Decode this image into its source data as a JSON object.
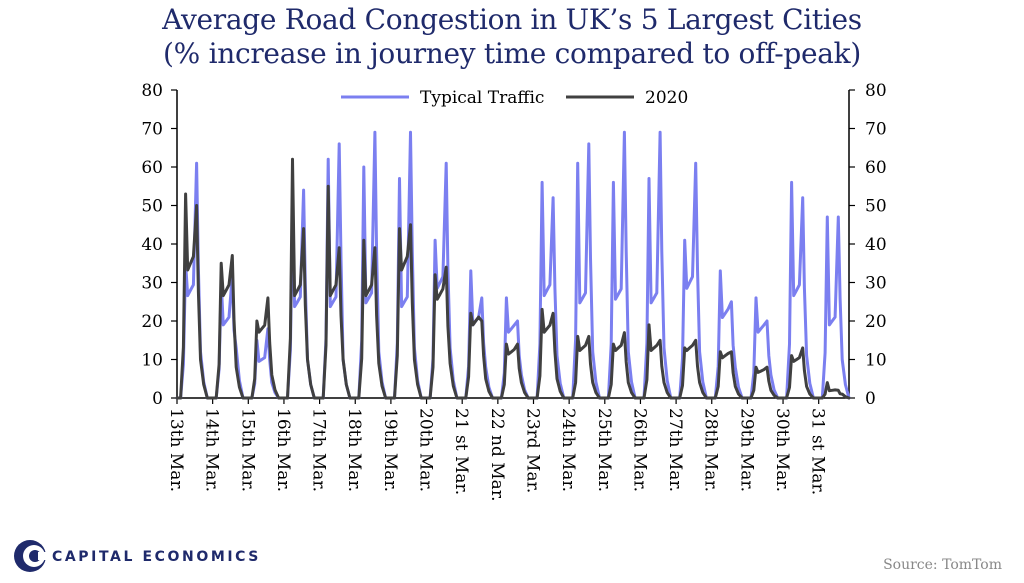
{
  "title_line1": "Average Road Congestion in UK’s 5 Largest Cities",
  "title_line2": "(% increase in journey time compared to off-peak)",
  "source": "Source: TomTom",
  "logo_text": "CAPITAL ECONOMICS",
  "colors": {
    "title": "#1f2a6b",
    "typical": "#7b7ff0",
    "y2020": "#404040",
    "axis": "#000000"
  },
  "chart_data": {
    "type": "line",
    "title": "Average Road Congestion in UK’s 5 Largest Cities (% increase in journey time compared to off-peak)",
    "xlabel": "",
    "ylabel": "",
    "ylim": [
      0,
      80
    ],
    "yticks": [
      0,
      10,
      20,
      30,
      40,
      50,
      60,
      70,
      80
    ],
    "categories": [
      "13th Mar.",
      "14th Mar.",
      "15th Mar.",
      "16th Mar.",
      "17th Mar.",
      "18th Mar.",
      "19th Mar.",
      "20th Mar.",
      "21 st Mar.",
      "22 nd Mar.",
      "23rd Mar.",
      "24th Mar.",
      "25th Mar.",
      "26th Mar.",
      "27th Mar.",
      "28th Mar.",
      "29th Mar.",
      "30th Mar.",
      "31 st Mar."
    ],
    "legend_position": "top-center",
    "grid": false,
    "series": [
      {
        "name": "Typical Traffic",
        "color": "#7b7ff0",
        "days": [
          {
            "am": 35,
            "mid": 28,
            "pm": 61,
            "late": 12
          },
          {
            "am": 30,
            "mid": 20,
            "pm": 32,
            "late": 13
          },
          {
            "am": 15,
            "mid": 10,
            "pm": 18,
            "late": 4
          },
          {
            "am": 50,
            "mid": 25,
            "pm": 54,
            "late": 10
          },
          {
            "am": 62,
            "mid": 25,
            "pm": 66,
            "late": 10
          },
          {
            "am": 60,
            "mid": 26,
            "pm": 69,
            "late": 12
          },
          {
            "am": 57,
            "mid": 25,
            "pm": 69,
            "late": 13
          },
          {
            "am": 41,
            "mid": 30,
            "pm": 61,
            "late": 13
          },
          {
            "am": 33,
            "mid": 20,
            "pm": 26,
            "late": 8
          },
          {
            "am": 26,
            "mid": 18,
            "pm": 20,
            "late": 6
          },
          {
            "am": 56,
            "mid": 28,
            "pm": 52,
            "late": 11
          },
          {
            "am": 61,
            "mid": 26,
            "pm": 66,
            "late": 12
          },
          {
            "am": 56,
            "mid": 27,
            "pm": 69,
            "late": 12
          },
          {
            "am": 57,
            "mid": 26,
            "pm": 69,
            "late": 13
          },
          {
            "am": 41,
            "mid": 30,
            "pm": 61,
            "late": 12
          },
          {
            "am": 33,
            "mid": 22,
            "pm": 25,
            "late": 8
          },
          {
            "am": 26,
            "mid": 18,
            "pm": 20,
            "late": 6
          },
          {
            "am": 56,
            "mid": 28,
            "pm": 52,
            "late": 11
          },
          {
            "am": 47,
            "mid": 20,
            "pm": 47,
            "late": 10
          }
        ]
      },
      {
        "name": "2020",
        "color": "#404040",
        "days": [
          {
            "am": 53,
            "mid": 35,
            "pm": 50,
            "late": 10
          },
          {
            "am": 35,
            "mid": 28,
            "pm": 37,
            "late": 8
          },
          {
            "am": 20,
            "mid": 18,
            "pm": 26,
            "late": 6
          },
          {
            "am": 62,
            "mid": 28,
            "pm": 44,
            "late": 10
          },
          {
            "am": 55,
            "mid": 28,
            "pm": 39,
            "late": 10
          },
          {
            "am": 41,
            "mid": 28,
            "pm": 39,
            "late": 9
          },
          {
            "am": 44,
            "mid": 35,
            "pm": 45,
            "late": 10
          },
          {
            "am": 32,
            "mid": 27,
            "pm": 34,
            "late": 9
          },
          {
            "am": 22,
            "mid": 20,
            "pm": 20,
            "late": 5
          },
          {
            "am": 14,
            "mid": 12,
            "pm": 14,
            "late": 4
          },
          {
            "am": 23,
            "mid": 18,
            "pm": 22,
            "late": 5
          },
          {
            "am": 16,
            "mid": 13,
            "pm": 16,
            "late": 4
          },
          {
            "am": 14,
            "mid": 13,
            "pm": 17,
            "late": 4
          },
          {
            "am": 19,
            "mid": 13,
            "pm": 15,
            "late": 4
          },
          {
            "am": 13,
            "mid": 13,
            "pm": 15,
            "late": 4
          },
          {
            "am": 12,
            "mid": 11,
            "pm": 12,
            "late": 3
          },
          {
            "am": 8,
            "mid": 7,
            "pm": 8,
            "late": 2
          },
          {
            "am": 11,
            "mid": 10,
            "pm": 13,
            "late": 3
          },
          {
            "am": 4,
            "mid": 2,
            "pm": 2,
            "late": 1
          }
        ]
      }
    ]
  }
}
